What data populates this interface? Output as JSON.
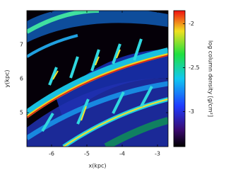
{
  "chart_data": {
    "type": "heatmap",
    "x_label": "x(kpc)",
    "y_label": "y(kpc)",
    "colorbar_label": "log column density [g/cm²]",
    "xlim": [
      -6.7,
      -2.7
    ],
    "xticks": [
      -6,
      -5,
      -4,
      -3
    ],
    "ylim": [
      4,
      8
    ],
    "yticks": [
      5,
      6,
      7
    ],
    "clim": [
      -3.4,
      -1.85
    ],
    "cticks": [
      -3,
      -2.5,
      -2
    ]
  }
}
